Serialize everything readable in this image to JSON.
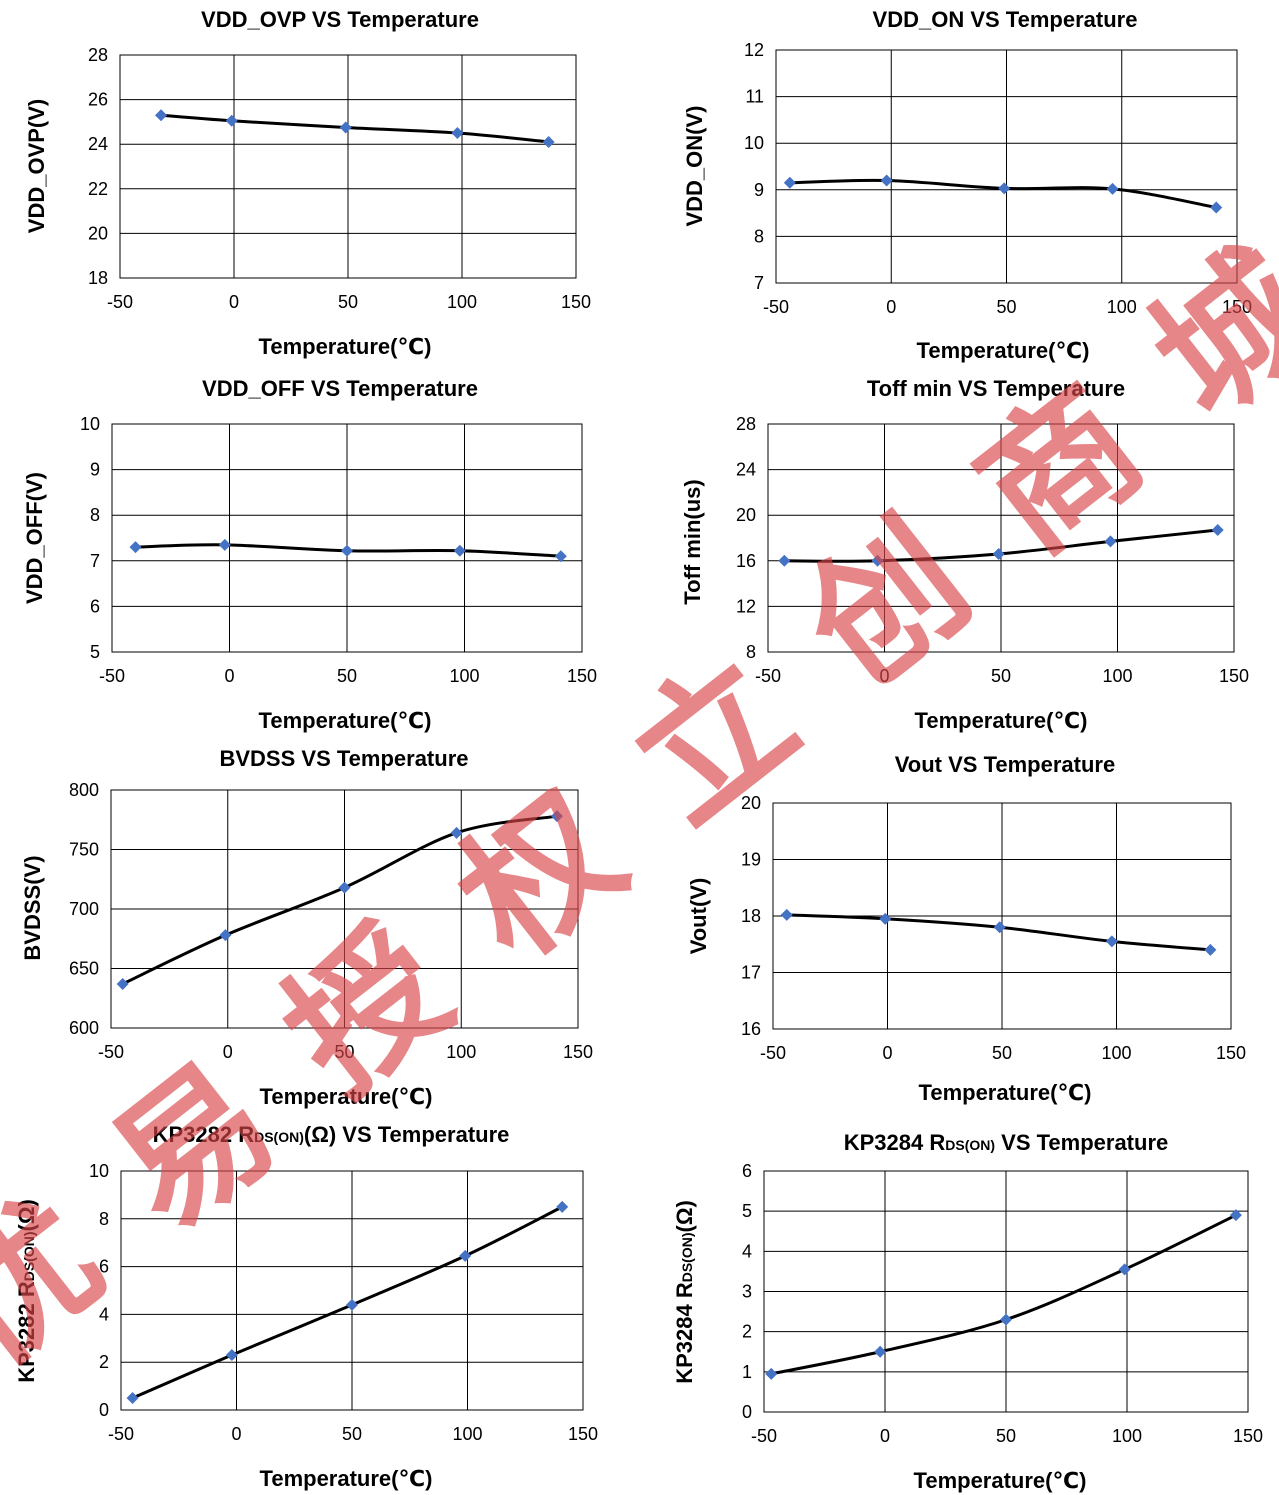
{
  "chart_data": [
    {
      "type": "line",
      "title": "VDD_OVP VS Temperature",
      "xlabel": "Temperature(℃)",
      "ylabel": "VDD_OVP(V)",
      "xlim": [
        -50,
        150
      ],
      "ylim": [
        18,
        28
      ],
      "xticks": [
        -50,
        0,
        50,
        100,
        150
      ],
      "yticks": [
        18,
        20,
        22,
        24,
        26,
        28
      ],
      "grid": true,
      "series": [
        {
          "x": [
            -32,
            -1,
            49,
            98,
            138
          ],
          "y": [
            25.3,
            25.05,
            24.75,
            24.5,
            24.1
          ]
        }
      ]
    },
    {
      "type": "line",
      "title": "VDD_ON VS Temperature",
      "xlabel": "Temperature(℃)",
      "ylabel": "VDD_ON(V)",
      "xlim": [
        -50,
        150
      ],
      "ylim": [
        7,
        12
      ],
      "xticks": [
        -50,
        0,
        50,
        100,
        150
      ],
      "yticks": [
        7,
        8,
        9,
        10,
        11,
        12
      ],
      "grid": true,
      "series": [
        {
          "x": [
            -44,
            -2,
            49,
            96,
            141
          ],
          "y": [
            9.15,
            9.2,
            9.03,
            9.02,
            8.62
          ]
        }
      ]
    },
    {
      "type": "line",
      "title": "VDD_OFF VS Temperature",
      "xlabel": "Temperature(℃)",
      "ylabel": "VDD_OFF(V)",
      "xlim": [
        -50,
        150
      ],
      "ylim": [
        5,
        10
      ],
      "xticks": [
        -50,
        0,
        50,
        100,
        150
      ],
      "yticks": [
        5,
        6,
        7,
        8,
        9,
        10
      ],
      "grid": true,
      "series": [
        {
          "x": [
            -40,
            -2,
            50,
            98,
            141
          ],
          "y": [
            7.3,
            7.35,
            7.22,
            7.22,
            7.1
          ]
        }
      ]
    },
    {
      "type": "line",
      "title": "Toff min VS Temperature",
      "xlabel": "Temperature(℃)",
      "ylabel": "Toff min(us)",
      "xlim": [
        -50,
        150
      ],
      "ylim": [
        8,
        28
      ],
      "xticks": [
        -50,
        0,
        50,
        100,
        150
      ],
      "yticks": [
        8,
        12,
        16,
        20,
        24,
        28
      ],
      "grid": true,
      "series": [
        {
          "x": [
            -43,
            -3,
            49,
            97,
            143
          ],
          "y": [
            16.0,
            16.0,
            16.6,
            17.7,
            18.7
          ]
        }
      ]
    },
    {
      "type": "line",
      "title": "BVDSS VS Temperature",
      "xlabel": "Temperature(℃)",
      "ylabel": "BVDSS(V)",
      "xlim": [
        -50,
        150
      ],
      "ylim": [
        600,
        800
      ],
      "xticks": [
        -50,
        0,
        50,
        100,
        150
      ],
      "yticks": [
        600,
        650,
        700,
        750,
        800
      ],
      "grid": true,
      "series": [
        {
          "x": [
            -45,
            -1,
            50,
            98,
            141
          ],
          "y": [
            637,
            678,
            718,
            764,
            778
          ]
        }
      ]
    },
    {
      "type": "line",
      "title": "Vout VS Temperature",
      "xlabel": "Temperature(℃)",
      "ylabel": "Vout(V)",
      "xlim": [
        -50,
        150
      ],
      "ylim": [
        16,
        20
      ],
      "xticks": [
        -50,
        0,
        50,
        100,
        150
      ],
      "yticks": [
        16,
        17,
        18,
        19,
        20
      ],
      "grid": true,
      "series": [
        {
          "x": [
            -44,
            -1,
            49,
            98,
            141
          ],
          "y": [
            18.02,
            17.95,
            17.8,
            17.55,
            17.4
          ]
        }
      ]
    },
    {
      "type": "line",
      "title": "KP3282 RDS(ON)(Ω) VS Temperature",
      "xlabel": "Temperature(℃)",
      "ylabel": "KP3282 RDS(ON)(Ω)",
      "xlim": [
        -50,
        150
      ],
      "ylim": [
        0,
        10
      ],
      "xticks": [
        -50,
        0,
        50,
        100,
        150
      ],
      "yticks": [
        0,
        2,
        4,
        6,
        8,
        10
      ],
      "grid": true,
      "series": [
        {
          "x": [
            -45,
            -2,
            50,
            99,
            141
          ],
          "y": [
            0.5,
            2.3,
            4.4,
            6.45,
            8.5
          ]
        }
      ]
    },
    {
      "type": "line",
      "title": "KP3284 RDS(ON) VS Temperature",
      "xlabel": "Temperature(℃)",
      "ylabel": "KP3284 RDS(ON)(Ω)",
      "xlim": [
        -50,
        150
      ],
      "ylim": [
        0,
        6
      ],
      "xticks": [
        -50,
        0,
        50,
        100,
        150
      ],
      "yticks": [
        0,
        1,
        2,
        3,
        4,
        5,
        6
      ],
      "grid": true,
      "series": [
        {
          "x": [
            -47,
            -2,
            50,
            99,
            145
          ],
          "y": [
            0.95,
            1.5,
            2.3,
            3.55,
            4.9
          ]
        }
      ]
    }
  ],
  "watermark": {
    "text": "优易授权立创商城",
    "color": "#d9464a"
  },
  "colors": {
    "marker": "#4472c4",
    "line": "#000000"
  }
}
